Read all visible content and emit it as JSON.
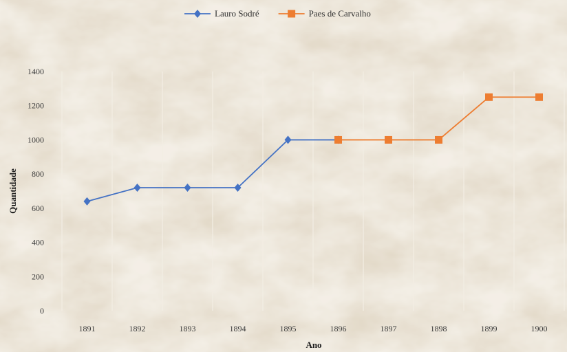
{
  "chart_data": {
    "type": "line",
    "title": "",
    "xlabel": "Ano",
    "ylabel": "Quantidade",
    "categories": [
      "1891",
      "1892",
      "1893",
      "1894",
      "1895",
      "1896",
      "1897",
      "1898",
      "1899",
      "1900"
    ],
    "ylim": [
      0,
      1400
    ],
    "yticks": [
      0,
      200,
      400,
      600,
      800,
      1000,
      1200,
      1400
    ],
    "legend_position": "top-center",
    "grid": "vertical",
    "series": [
      {
        "name": "Lauro Sodré",
        "color": "#4472c4",
        "marker": "diamond",
        "points": [
          [
            "1891",
            640
          ],
          [
            "1892",
            720
          ],
          [
            "1893",
            720
          ],
          [
            "1894",
            720
          ],
          [
            "1895",
            1000
          ],
          [
            "1896",
            1000
          ]
        ]
      },
      {
        "name": "Paes de Carvalho",
        "color": "#ed7d31",
        "marker": "square",
        "points": [
          [
            "1896",
            1000
          ],
          [
            "1897",
            1000
          ],
          [
            "1898",
            1000
          ],
          [
            "1899",
            1250
          ],
          [
            "1900",
            1250
          ]
        ]
      }
    ]
  }
}
